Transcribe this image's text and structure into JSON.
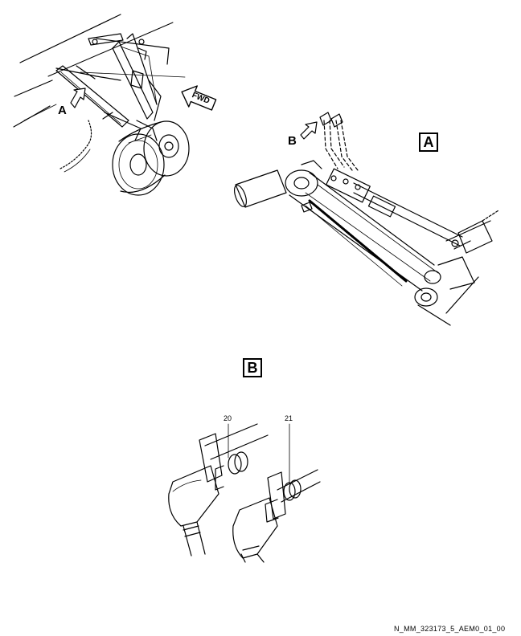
{
  "views": {
    "a_label": "A",
    "b_label": "B"
  },
  "callouts": {
    "view_a_arrow": "A",
    "view_b_arrow": "B",
    "fwd": "FWD"
  },
  "items": {
    "item_20": "20",
    "item_21": "21"
  },
  "doc_ref": "N_MM_323173_5_AEM0_01_00",
  "colors": {
    "line": "#000000",
    "background": "#ffffff"
  }
}
